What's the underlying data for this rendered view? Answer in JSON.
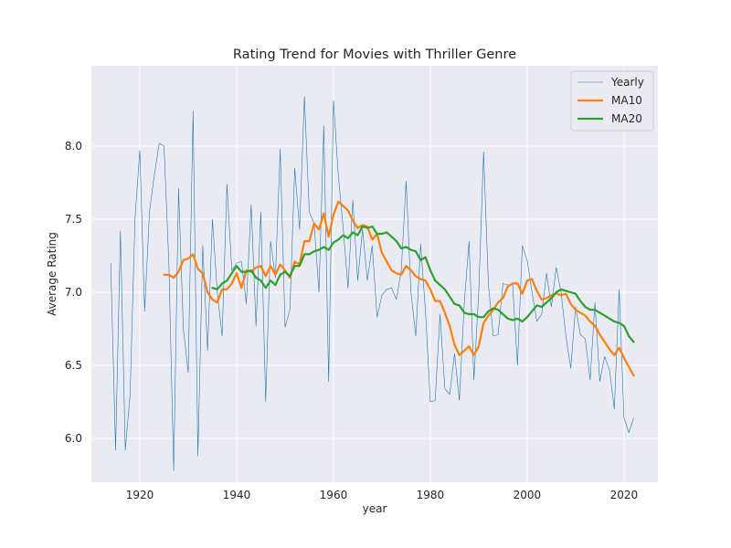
{
  "chart_data": {
    "type": "line",
    "title": "Rating Trend for Movies with Thriller Genre",
    "xlabel": "year",
    "ylabel": "Average Rating",
    "xlim": [
      1910,
      2027
    ],
    "ylim": [
      5.7,
      8.55
    ],
    "xticks": [
      1920,
      1940,
      1960,
      1980,
      2000,
      2020
    ],
    "xtick_labels": [
      "1920",
      "1940",
      "1960",
      "1980",
      "2000",
      "2020"
    ],
    "yticks": [
      6.0,
      6.5,
      7.0,
      7.5,
      8.0
    ],
    "ytick_labels": [
      "6.0",
      "6.5",
      "7.0",
      "7.5",
      "8.0"
    ],
    "grid": true,
    "legend_position": "top-right",
    "background": "#eaeaf2",
    "series": [
      {
        "name": "Yearly",
        "color": "#1f77b4",
        "width": 0.6,
        "x": [
          1914,
          1915,
          1916,
          1917,
          1918,
          1919,
          1920,
          1921,
          1922,
          1923,
          1924,
          1925,
          1926,
          1927,
          1928,
          1929,
          1930,
          1931,
          1932,
          1933,
          1934,
          1935,
          1936,
          1937,
          1938,
          1939,
          1940,
          1941,
          1942,
          1943,
          1944,
          1945,
          1946,
          1947,
          1948,
          1949,
          1950,
          1951,
          1952,
          1953,
          1954,
          1955,
          1956,
          1957,
          1958,
          1959,
          1960,
          1961,
          1962,
          1963,
          1964,
          1965,
          1966,
          1967,
          1968,
          1969,
          1970,
          1971,
          1972,
          1973,
          1974,
          1975,
          1976,
          1977,
          1978,
          1979,
          1980,
          1981,
          1982,
          1983,
          1984,
          1985,
          1986,
          1987,
          1988,
          1989,
          1990,
          1991,
          1992,
          1993,
          1994,
          1995,
          1996,
          1997,
          1998,
          1999,
          2000,
          2001,
          2002,
          2003,
          2004,
          2005,
          2006,
          2007,
          2008,
          2009,
          2010,
          2011,
          2012,
          2013,
          2014,
          2015,
          2016,
          2017,
          2018,
          2019,
          2020,
          2021,
          2022
        ],
        "y": [
          7.2,
          5.92,
          7.42,
          5.92,
          6.3,
          7.5,
          7.97,
          6.87,
          7.55,
          7.8,
          8.02,
          8.0,
          7.2,
          5.78,
          7.71,
          6.75,
          6.45,
          8.24,
          5.88,
          7.32,
          6.6,
          7.5,
          7.0,
          6.7,
          7.74,
          7.15,
          7.2,
          7.21,
          6.92,
          7.6,
          6.77,
          7.55,
          6.25,
          7.35,
          7.1,
          7.98,
          6.76,
          6.88,
          7.85,
          7.43,
          8.34,
          7.55,
          7.47,
          7.0,
          8.14,
          6.39,
          8.31,
          7.8,
          7.44,
          7.03,
          7.63,
          7.08,
          7.43,
          7.08,
          7.32,
          6.83,
          6.98,
          7.02,
          7.03,
          6.95,
          7.15,
          7.76,
          7.0,
          6.7,
          7.33,
          6.87,
          6.25,
          6.26,
          6.85,
          6.34,
          6.3,
          6.58,
          6.26,
          6.92,
          7.35,
          6.4,
          7.0,
          7.96,
          7.05,
          6.7,
          6.71,
          7.06,
          7.05,
          7.05,
          6.5,
          7.32,
          7.22,
          7.0,
          6.8,
          6.85,
          7.13,
          6.9,
          7.17,
          7.0,
          6.7,
          6.48,
          6.9,
          6.71,
          6.68,
          6.4,
          6.93,
          6.39,
          6.56,
          6.47,
          6.2,
          7.02,
          6.14,
          6.04,
          6.14
        ]
      },
      {
        "name": "MA10",
        "color": "#ff7f0e",
        "width": 2.2,
        "x": [
          1925,
          1926,
          1927,
          1928,
          1929,
          1930,
          1931,
          1932,
          1933,
          1934,
          1935,
          1936,
          1937,
          1938,
          1939,
          1940,
          1941,
          1942,
          1943,
          1944,
          1945,
          1946,
          1947,
          1948,
          1949,
          1950,
          1951,
          1952,
          1953,
          1954,
          1955,
          1956,
          1957,
          1958,
          1959,
          1960,
          1961,
          1962,
          1963,
          1964,
          1965,
          1966,
          1967,
          1968,
          1969,
          1970,
          1971,
          1972,
          1973,
          1974,
          1975,
          1976,
          1977,
          1978,
          1979,
          1980,
          1981,
          1982,
          1983,
          1984,
          1985,
          1986,
          1987,
          1988,
          1989,
          1990,
          1991,
          1992,
          1993,
          1994,
          1995,
          1996,
          1997,
          1998,
          1999,
          2000,
          2001,
          2002,
          2003,
          2004,
          2005,
          2006,
          2007,
          2008,
          2009,
          2010,
          2011,
          2012,
          2013,
          2014,
          2015,
          2016,
          2017,
          2018,
          2019,
          2020,
          2021,
          2022
        ],
        "y": [
          7.12,
          7.12,
          7.1,
          7.14,
          7.22,
          7.23,
          7.26,
          7.16,
          7.13,
          7.0,
          6.95,
          6.93,
          7.02,
          7.02,
          7.06,
          7.13,
          7.03,
          7.15,
          7.14,
          7.17,
          7.18,
          7.11,
          7.18,
          7.12,
          7.19,
          7.15,
          7.1,
          7.21,
          7.19,
          7.35,
          7.35,
          7.47,
          7.43,
          7.54,
          7.38,
          7.53,
          7.62,
          7.59,
          7.56,
          7.49,
          7.44,
          7.46,
          7.45,
          7.36,
          7.4,
          7.27,
          7.21,
          7.15,
          7.13,
          7.12,
          7.18,
          7.15,
          7.11,
          7.09,
          7.08,
          7.02,
          6.94,
          6.94,
          6.86,
          6.77,
          6.64,
          6.57,
          6.6,
          6.63,
          6.57,
          6.63,
          6.79,
          6.84,
          6.88,
          6.93,
          6.96,
          7.04,
          7.06,
          7.06,
          6.99,
          7.08,
          7.09,
          7.01,
          6.95,
          6.96,
          6.98,
          6.99,
          6.98,
          6.99,
          6.92,
          6.88,
          6.86,
          6.84,
          6.8,
          6.77,
          6.71,
          6.66,
          6.61,
          6.57,
          6.62,
          6.55,
          6.49,
          6.43
        ]
      },
      {
        "name": "MA20",
        "color": "#2ca02c",
        "width": 2.2,
        "x": [
          1935,
          1936,
          1937,
          1938,
          1939,
          1940,
          1941,
          1942,
          1943,
          1944,
          1945,
          1946,
          1947,
          1948,
          1949,
          1950,
          1951,
          1952,
          1953,
          1954,
          1955,
          1956,
          1957,
          1958,
          1959,
          1960,
          1961,
          1962,
          1963,
          1964,
          1965,
          1966,
          1967,
          1968,
          1969,
          1970,
          1971,
          1972,
          1973,
          1974,
          1975,
          1976,
          1977,
          1978,
          1979,
          1980,
          1981,
          1982,
          1983,
          1984,
          1985,
          1986,
          1987,
          1988,
          1989,
          1990,
          1991,
          1992,
          1993,
          1994,
          1995,
          1996,
          1997,
          1998,
          1999,
          2000,
          2001,
          2002,
          2003,
          2004,
          2005,
          2006,
          2007,
          2008,
          2009,
          2010,
          2011,
          2012,
          2013,
          2014,
          2015,
          2016,
          2017,
          2018,
          2019,
          2020,
          2021,
          2022
        ],
        "y": [
          7.03,
          7.02,
          7.06,
          7.08,
          7.13,
          7.18,
          7.14,
          7.14,
          7.15,
          7.1,
          7.08,
          7.03,
          7.08,
          7.05,
          7.12,
          7.14,
          7.11,
          7.18,
          7.18,
          7.26,
          7.26,
          7.28,
          7.29,
          7.31,
          7.29,
          7.34,
          7.36,
          7.39,
          7.37,
          7.41,
          7.39,
          7.45,
          7.44,
          7.45,
          7.4,
          7.4,
          7.41,
          7.38,
          7.35,
          7.3,
          7.31,
          7.29,
          7.28,
          7.22,
          7.24,
          7.15,
          7.08,
          7.05,
          7.02,
          6.97,
          6.92,
          6.91,
          6.86,
          6.85,
          6.85,
          6.83,
          6.83,
          6.87,
          6.89,
          6.88,
          6.85,
          6.82,
          6.81,
          6.82,
          6.8,
          6.83,
          6.87,
          6.91,
          6.9,
          6.93,
          6.96,
          7.0,
          7.02,
          7.01,
          7.0,
          6.99,
          6.94,
          6.9,
          6.88,
          6.88,
          6.86,
          6.84,
          6.82,
          6.8,
          6.79,
          6.77,
          6.7,
          6.66
        ]
      }
    ]
  }
}
